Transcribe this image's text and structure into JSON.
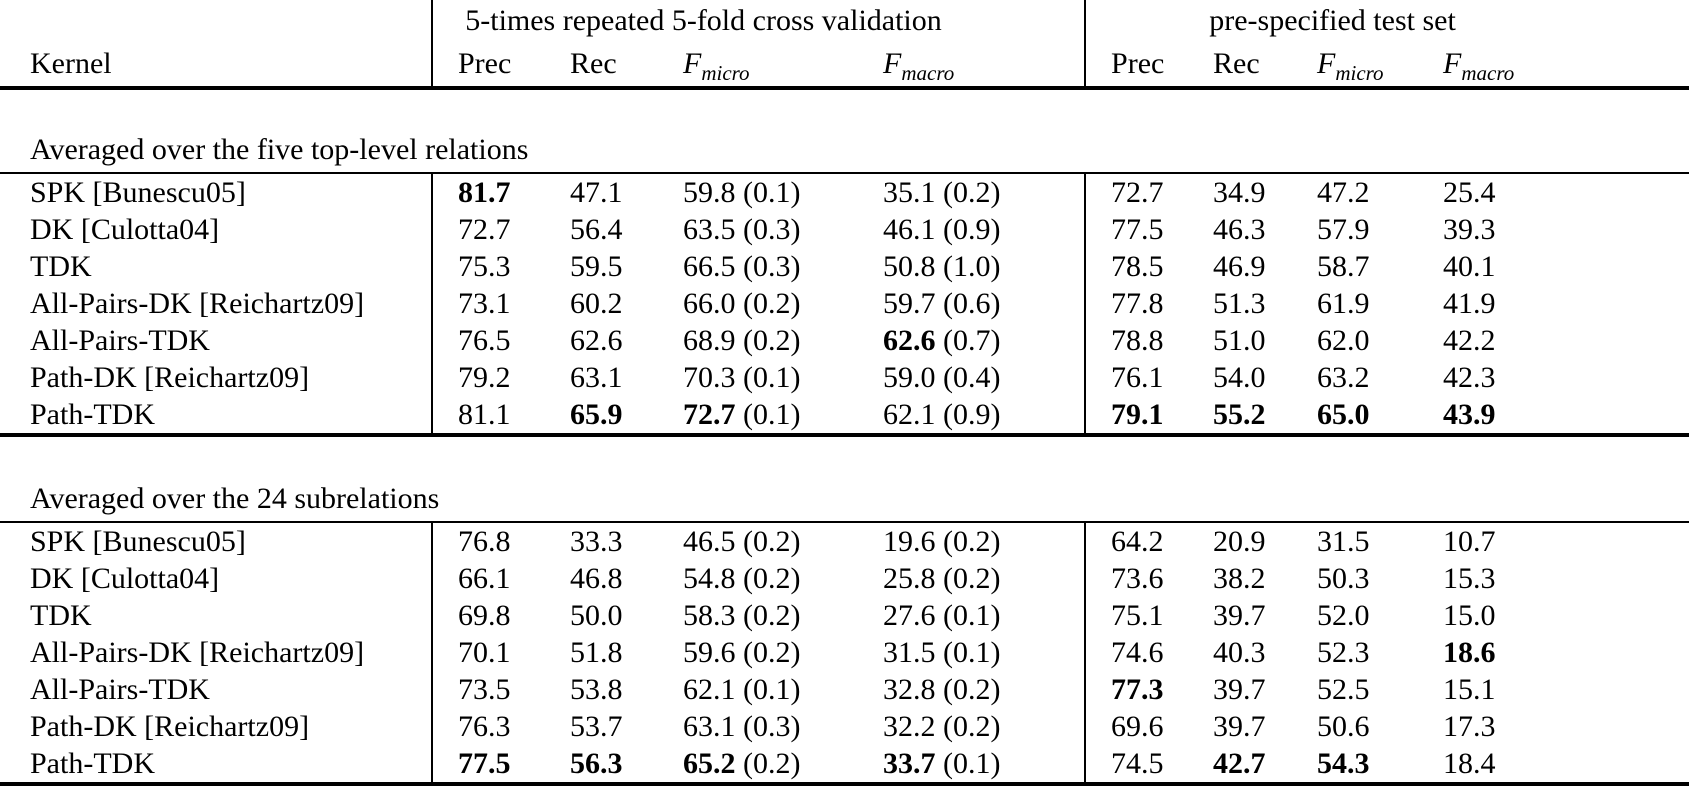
{
  "header": {
    "kernel": "Kernel",
    "group_cv": "5-times repeated 5-fold cross validation",
    "group_test": "pre-specified test set",
    "prec": "Prec",
    "rec": "Rec",
    "f_base": "F",
    "f_micro_sub": "micro",
    "f_macro_sub": "macro"
  },
  "sections": [
    {
      "title": "Averaged over the five top-level relations",
      "rows": [
        {
          "kernel": "SPK [Bunescu05]",
          "cells": [
            {
              "v": "81.7",
              "bold": true
            },
            {
              "v": "47.1"
            },
            {
              "v": "59.8",
              "sd": "(0.1)"
            },
            {
              "v": "35.1",
              "sd": "(0.2)"
            },
            {
              "v": "72.7"
            },
            {
              "v": "34.9"
            },
            {
              "v": "47.2"
            },
            {
              "v": "25.4"
            }
          ]
        },
        {
          "kernel": "DK [Culotta04]",
          "cells": [
            {
              "v": "72.7"
            },
            {
              "v": "56.4"
            },
            {
              "v": "63.5",
              "sd": "(0.3)"
            },
            {
              "v": "46.1",
              "sd": "(0.9)"
            },
            {
              "v": "77.5"
            },
            {
              "v": "46.3"
            },
            {
              "v": "57.9"
            },
            {
              "v": "39.3"
            }
          ]
        },
        {
          "kernel": "TDK",
          "cells": [
            {
              "v": "75.3"
            },
            {
              "v": "59.5"
            },
            {
              "v": "66.5",
              "sd": "(0.3)"
            },
            {
              "v": "50.8",
              "sd": "(1.0)"
            },
            {
              "v": "78.5"
            },
            {
              "v": "46.9"
            },
            {
              "v": "58.7"
            },
            {
              "v": "40.1"
            }
          ]
        },
        {
          "kernel": "All-Pairs-DK [Reichartz09]",
          "cells": [
            {
              "v": "73.1"
            },
            {
              "v": "60.2"
            },
            {
              "v": "66.0",
              "sd": "(0.2)"
            },
            {
              "v": "59.7",
              "sd": "(0.6)"
            },
            {
              "v": "77.8"
            },
            {
              "v": "51.3"
            },
            {
              "v": "61.9"
            },
            {
              "v": "41.9"
            }
          ]
        },
        {
          "kernel": "All-Pairs-TDK",
          "cells": [
            {
              "v": "76.5"
            },
            {
              "v": "62.6"
            },
            {
              "v": "68.9",
              "sd": "(0.2)"
            },
            {
              "v": "62.6",
              "sd": "(0.7)",
              "bold": true
            },
            {
              "v": "78.8"
            },
            {
              "v": "51.0"
            },
            {
              "v": "62.0"
            },
            {
              "v": "42.2"
            }
          ]
        },
        {
          "kernel": "Path-DK [Reichartz09]",
          "cells": [
            {
              "v": "79.2"
            },
            {
              "v": "63.1"
            },
            {
              "v": "70.3",
              "sd": "(0.1)"
            },
            {
              "v": "59.0",
              "sd": "(0.4)"
            },
            {
              "v": "76.1"
            },
            {
              "v": "54.0"
            },
            {
              "v": "63.2"
            },
            {
              "v": "42.3"
            }
          ]
        },
        {
          "kernel": "Path-TDK",
          "cells": [
            {
              "v": "81.1"
            },
            {
              "v": "65.9",
              "bold": true
            },
            {
              "v": "72.7",
              "sd": "(0.1)",
              "bold": true
            },
            {
              "v": "62.1",
              "sd": "(0.9)"
            },
            {
              "v": "79.1",
              "bold": true
            },
            {
              "v": "55.2",
              "bold": true
            },
            {
              "v": "65.0",
              "bold": true
            },
            {
              "v": "43.9",
              "bold": true
            }
          ]
        }
      ]
    },
    {
      "title": "Averaged over the 24 subrelations",
      "rows": [
        {
          "kernel": "SPK [Bunescu05]",
          "cells": [
            {
              "v": "76.8"
            },
            {
              "v": "33.3"
            },
            {
              "v": "46.5",
              "sd": "(0.2)"
            },
            {
              "v": "19.6",
              "sd": "(0.2)"
            },
            {
              "v": "64.2"
            },
            {
              "v": "20.9"
            },
            {
              "v": "31.5"
            },
            {
              "v": "10.7"
            }
          ]
        },
        {
          "kernel": "DK [Culotta04]",
          "cells": [
            {
              "v": "66.1"
            },
            {
              "v": "46.8"
            },
            {
              "v": "54.8",
              "sd": "(0.2)"
            },
            {
              "v": "25.8",
              "sd": "(0.2)"
            },
            {
              "v": "73.6"
            },
            {
              "v": "38.2"
            },
            {
              "v": "50.3"
            },
            {
              "v": "15.3"
            }
          ]
        },
        {
          "kernel": "TDK",
          "cells": [
            {
              "v": "69.8"
            },
            {
              "v": "50.0"
            },
            {
              "v": "58.3",
              "sd": "(0.2)"
            },
            {
              "v": "27.6",
              "sd": "(0.1)"
            },
            {
              "v": "75.1"
            },
            {
              "v": "39.7"
            },
            {
              "v": "52.0"
            },
            {
              "v": "15.0"
            }
          ]
        },
        {
          "kernel": "All-Pairs-DK [Reichartz09]",
          "cells": [
            {
              "v": "70.1"
            },
            {
              "v": "51.8"
            },
            {
              "v": "59.6",
              "sd": "(0.2)"
            },
            {
              "v": "31.5",
              "sd": "(0.1)"
            },
            {
              "v": "74.6"
            },
            {
              "v": "40.3"
            },
            {
              "v": "52.3"
            },
            {
              "v": "18.6",
              "bold": true
            }
          ]
        },
        {
          "kernel": "All-Pairs-TDK",
          "cells": [
            {
              "v": "73.5"
            },
            {
              "v": "53.8"
            },
            {
              "v": "62.1",
              "sd": "(0.1)"
            },
            {
              "v": "32.8",
              "sd": "(0.2)"
            },
            {
              "v": "77.3",
              "bold": true
            },
            {
              "v": "39.7"
            },
            {
              "v": "52.5"
            },
            {
              "v": "15.1"
            }
          ]
        },
        {
          "kernel": "Path-DK [Reichartz09]",
          "cells": [
            {
              "v": "76.3"
            },
            {
              "v": "53.7"
            },
            {
              "v": "63.1",
              "sd": "(0.3)"
            },
            {
              "v": "32.2",
              "sd": "(0.2)"
            },
            {
              "v": "69.6"
            },
            {
              "v": "39.7"
            },
            {
              "v": "50.6"
            },
            {
              "v": "17.3"
            }
          ]
        },
        {
          "kernel": "Path-TDK",
          "cells": [
            {
              "v": "77.5",
              "bold": true
            },
            {
              "v": "56.3",
              "bold": true
            },
            {
              "v": "65.2",
              "sd": "(0.2)",
              "bold": true
            },
            {
              "v": "33.7",
              "sd": "(0.1)",
              "bold": true
            },
            {
              "v": "74.5"
            },
            {
              "v": "42.7",
              "bold": true
            },
            {
              "v": "54.3",
              "bold": true
            },
            {
              "v": "18.4"
            }
          ]
        }
      ]
    }
  ]
}
